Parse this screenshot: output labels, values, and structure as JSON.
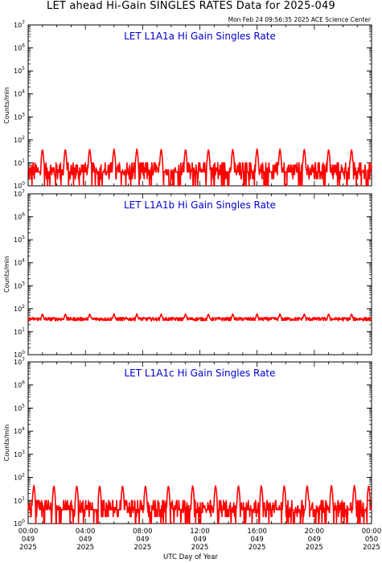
{
  "header": {
    "title": "LET ahead Hi-Gain SINGLES RATES Data for 2025-049",
    "timestamp": "Mon Feb 24 09:56:35 2025 ACE Science Center"
  },
  "colors": {
    "trace": "#ff0000",
    "panel_title": "#0000cc",
    "axis": "#000000"
  },
  "x_axis": {
    "label": "UTC Day of Year",
    "ticks": [
      {
        "time": "00:00",
        "doy": "049",
        "year": "2025"
      },
      {
        "time": "04:00",
        "doy": "049",
        "year": "2025"
      },
      {
        "time": "08:00",
        "doy": "049",
        "year": "2025"
      },
      {
        "time": "12:00",
        "doy": "049",
        "year": "2025"
      },
      {
        "time": "16:00",
        "doy": "049",
        "year": "2025"
      },
      {
        "time": "20:00",
        "doy": "049",
        "year": "2025"
      },
      {
        "time": "00:00",
        "doy": "050",
        "year": "2025"
      }
    ]
  },
  "chart_data": [
    {
      "type": "line",
      "title": "LET L1A1a Hi Gain Singles Rate",
      "ylabel": "Counts/min",
      "xlabel": "UTC Day of Year",
      "y_scale": "log",
      "ylim": [
        1,
        10000000
      ],
      "xlim_hours": [
        0,
        24
      ],
      "series": [
        {
          "baseline_range": [
            1,
            10
          ],
          "typical_level": 4,
          "spike_hours": [
            1.0,
            2.6,
            4.3,
            6.0,
            7.6,
            9.3,
            11.0,
            12.6,
            14.3,
            16.0,
            17.6,
            19.3,
            21.0,
            22.6
          ],
          "spike_peak": 40
        }
      ]
    },
    {
      "type": "line",
      "title": "LET L1A1b Hi Gain Singles Rate",
      "ylabel": "Counts/min",
      "xlabel": "UTC Day of Year",
      "y_scale": "log",
      "ylim": [
        1,
        10000000
      ],
      "xlim_hours": [
        0,
        24
      ],
      "series": [
        {
          "baseline_range": [
            28,
            45
          ],
          "typical_level": 35,
          "spike_hours": [
            1.0,
            2.6,
            4.3,
            6.0,
            7.6,
            9.3,
            11.0,
            12.6,
            14.3,
            16.0,
            17.6,
            19.3,
            21.0,
            22.6
          ],
          "spike_peak": 60
        }
      ]
    },
    {
      "type": "line",
      "title": "LET L1A1c Hi Gain Singles Rate",
      "ylabel": "Counts/min",
      "xlabel": "UTC Day of Year",
      "y_scale": "log",
      "ylim": [
        1,
        10000000
      ],
      "xlim_hours": [
        0,
        24
      ],
      "series": [
        {
          "baseline_range": [
            1,
            10
          ],
          "typical_level": 4,
          "spike_hours": [
            0.4,
            1.8,
            3.4,
            5.0,
            6.6,
            8.2,
            9.8,
            11.5,
            13.1,
            14.7,
            16.3,
            17.9,
            19.5,
            21.2,
            22.8,
            23.8
          ],
          "spike_peak": 45
        }
      ]
    }
  ]
}
